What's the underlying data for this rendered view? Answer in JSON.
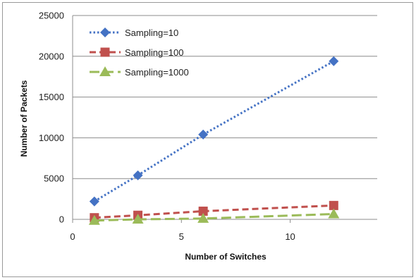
{
  "chart_data": {
    "type": "line",
    "xlabel": "Number of Switches",
    "ylabel": "Number of Packets",
    "xlim": [
      0,
      14
    ],
    "ylim": [
      0,
      25000
    ],
    "x_ticks": [
      0,
      5,
      10
    ],
    "y_ticks": [
      0,
      5000,
      10000,
      15000,
      20000,
      25000
    ],
    "grid": "horizontal",
    "legend_position": "top-left",
    "series": [
      {
        "name": "Sampling=10",
        "color": "#4472C4",
        "marker": "diamond",
        "line": "dotted",
        "x": [
          1,
          3,
          6,
          12
        ],
        "y": [
          2200,
          5400,
          10400,
          19400
        ]
      },
      {
        "name": "Sampling=100",
        "color": "#C0504D",
        "marker": "square",
        "line": "dashed",
        "x": [
          1,
          3,
          6,
          12
        ],
        "y": [
          200,
          500,
          1000,
          1700
        ]
      },
      {
        "name": "Sampling=1000",
        "color": "#9BBB59",
        "marker": "triangle",
        "line": "long-dash",
        "x": [
          1,
          3,
          6,
          12
        ],
        "y": [
          -150,
          0,
          100,
          650
        ]
      }
    ]
  }
}
